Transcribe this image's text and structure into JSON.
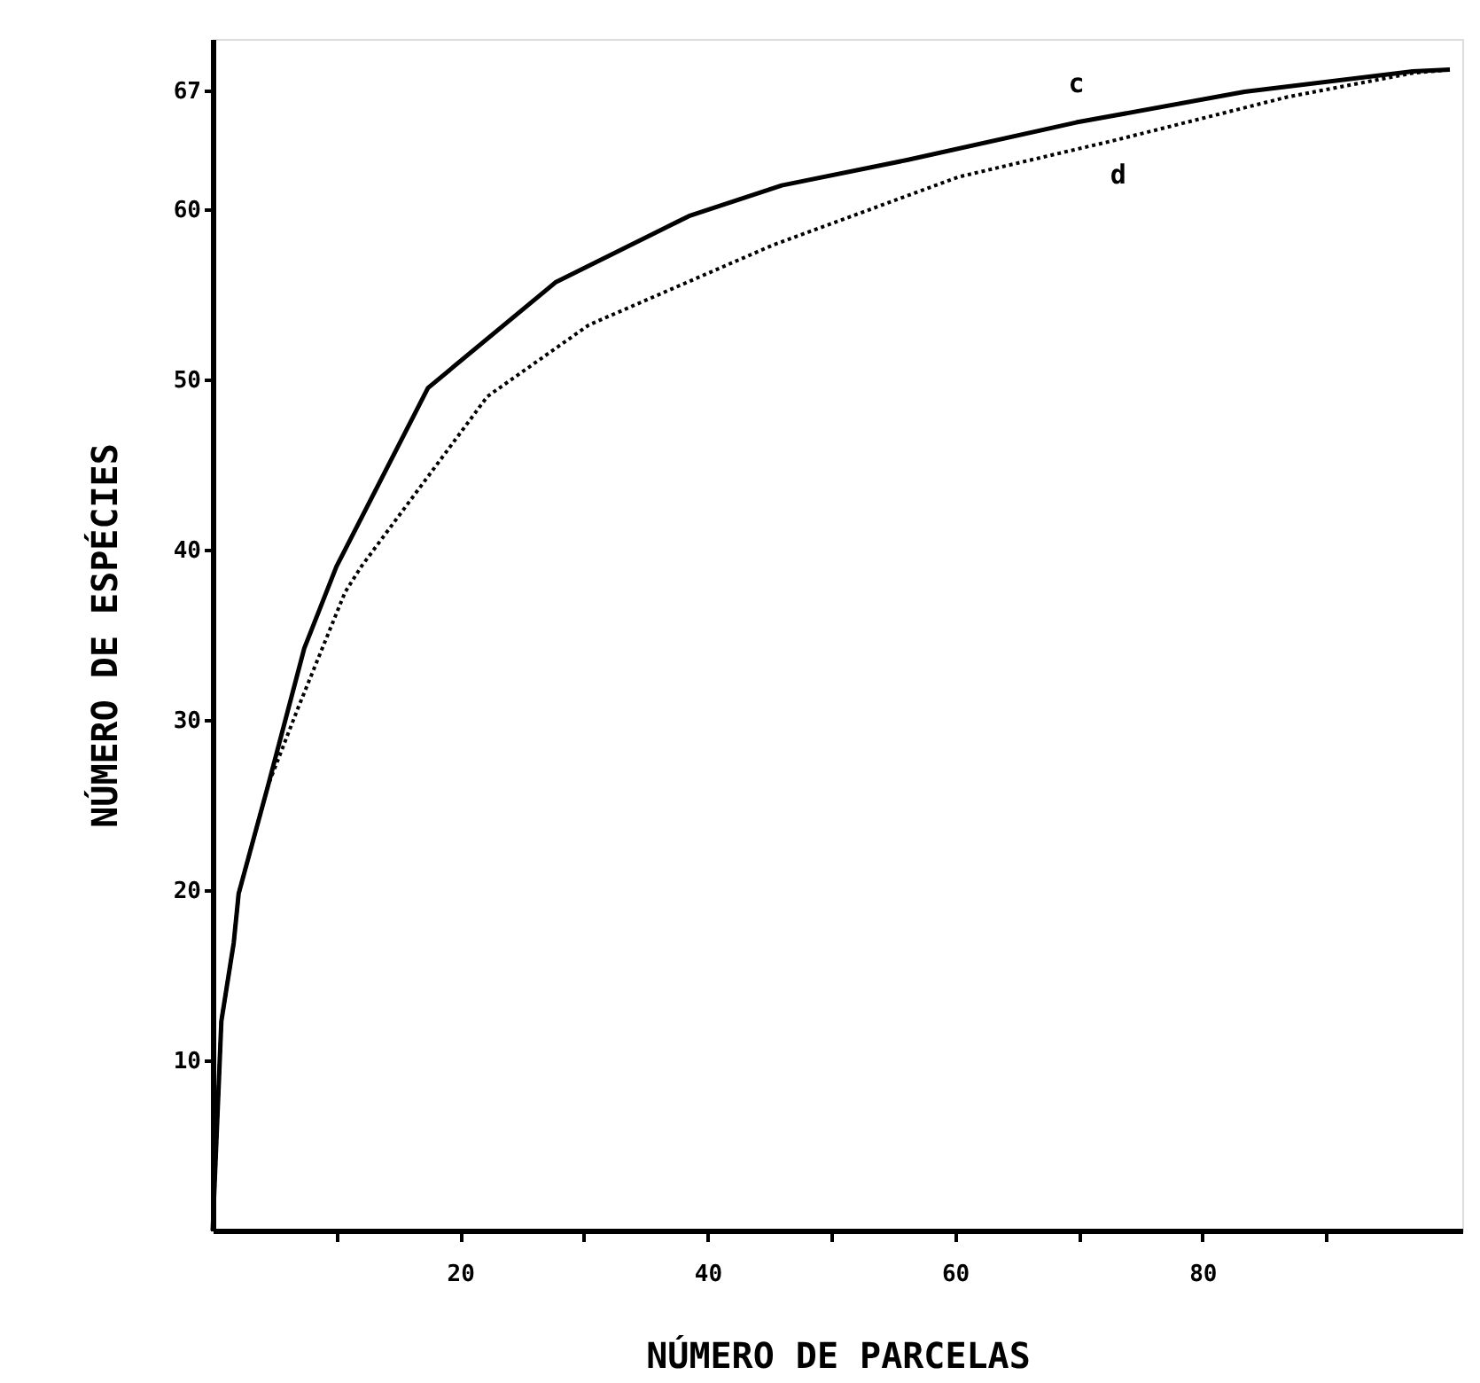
{
  "chart_data": {
    "type": "line",
    "xlabel": "NÚMERO DE PARCELAS",
    "ylabel": "NÚMERO  DE  ESPÉCIES",
    "xlim": [
      0,
      101
    ],
    "xticks": [
      {
        "value": 10,
        "label": null
      },
      20,
      {
        "value": 30,
        "label": null
      },
      40,
      {
        "value": 50,
        "label": null
      },
      60,
      {
        "value": 70,
        "label": null
      },
      80,
      {
        "value": 90,
        "label": null
      }
    ],
    "ylim": [
      0,
      70
    ],
    "yticks": [
      10,
      20,
      30,
      40,
      50,
      60,
      67
    ],
    "grid": false,
    "marker": "none",
    "series": [
      {
        "color": "#000000",
        "line_style": "solid",
        "x": [
          0,
          0.7,
          1.7,
          2.1,
          4.5,
          7.4,
          10,
          17.4,
          27.7,
          38.5,
          46,
          56.2,
          69.8,
          83.4,
          97,
          100
        ],
        "values": [
          0,
          12.3,
          16.9,
          19.8,
          26.2,
          34.2,
          39,
          49.5,
          55.7,
          59.6,
          61.4,
          62.9,
          65.1,
          66.9,
          68.1,
          68.2
        ]
      },
      {
        "color": "#000000",
        "line_style": "dotted",
        "x": [
          0,
          0.7,
          1.7,
          2.1,
          4.5,
          6.9,
          10.7,
          12,
          22.2,
          30.4,
          45.3,
          60.3,
          73.2,
          86.9,
          97,
          100
        ],
        "values": [
          0,
          12.3,
          16.9,
          19.8,
          26.2,
          30.7,
          37.5,
          39,
          49,
          53.2,
          57.9,
          61.9,
          64.1,
          66.6,
          68,
          68.2
        ]
      }
    ],
    "annotations": [
      {
        "text": "c",
        "x": 69.8,
        "y": 65.1
      },
      {
        "text": "d",
        "x": 73.2,
        "y": 64.1
      }
    ]
  }
}
